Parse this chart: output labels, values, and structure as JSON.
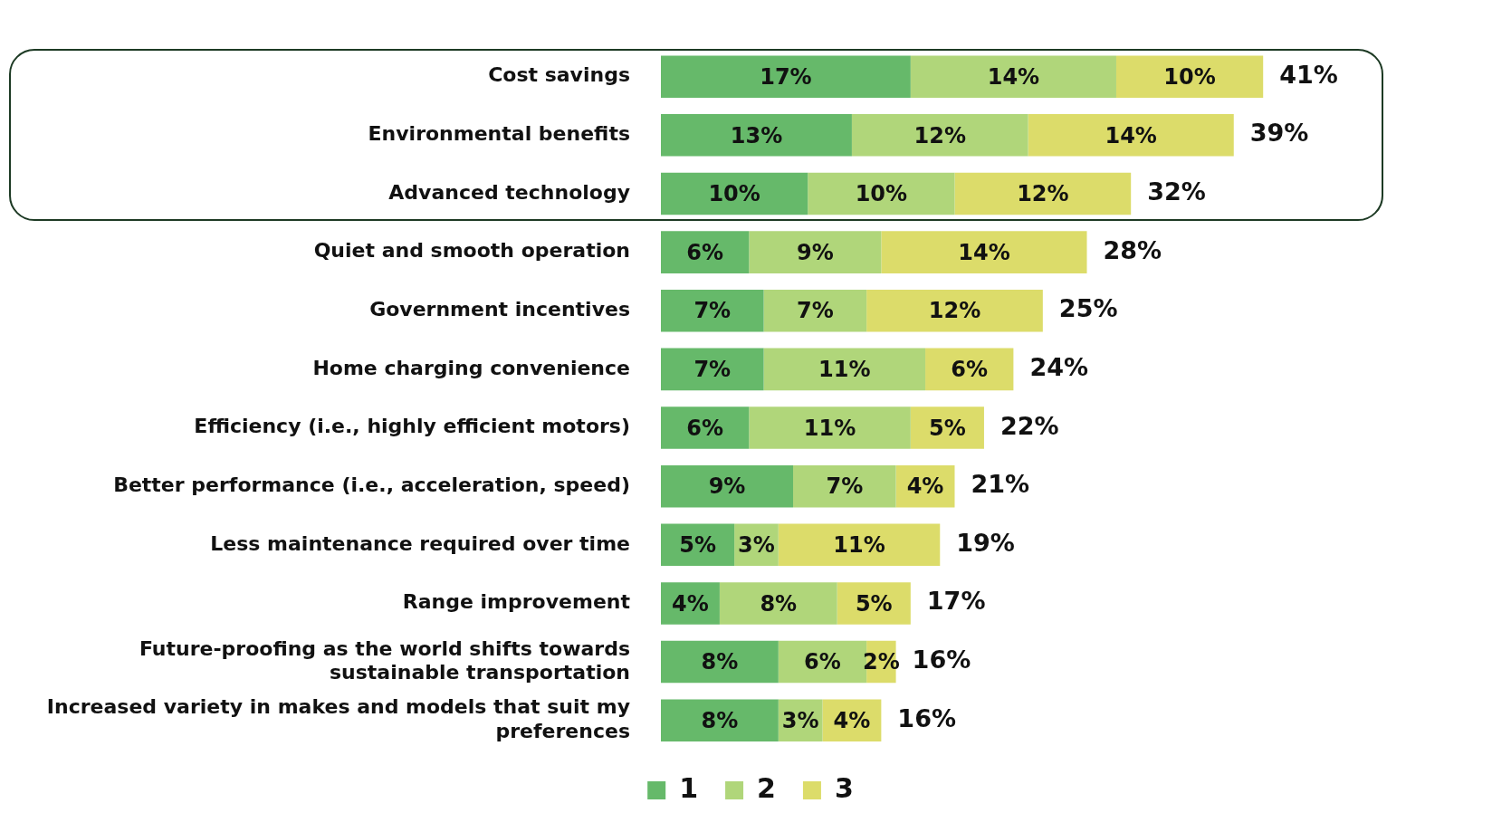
{
  "chart_data": {
    "type": "bar",
    "orientation": "horizontal",
    "stacked": true,
    "legend": "bottom",
    "categories": [
      "Cost savings",
      "Environmental benefits",
      "Advanced technology",
      "Quiet and smooth operation",
      "Government incentives",
      "Home charging convenience",
      "Efficiency (i.e., highly efficient motors)",
      "Better performance (i.e., acceleration, speed)",
      "Less maintenance required over time",
      "Range improvement",
      "Future-proofing as the world shifts towards sustainable transportation",
      "Increased variety in makes and models that suit my preferences"
    ],
    "series": [
      {
        "name": "1",
        "color": "#66b96a",
        "values": [
          17,
          13,
          10,
          6,
          7,
          7,
          6,
          9,
          5,
          4,
          8,
          8
        ],
        "value_labels": [
          "17%",
          "13%",
          "10%",
          "6%",
          "7%",
          "7%",
          "6%",
          "9%",
          "5%",
          "4%",
          "8%",
          "8%"
        ]
      },
      {
        "name": "2",
        "color": "#b0d67a",
        "values": [
          14,
          12,
          10,
          9,
          7,
          11,
          11,
          7,
          3,
          8,
          6,
          3
        ],
        "value_labels": [
          "14%",
          "12%",
          "10%",
          "9%",
          "7%",
          "11%",
          "11%",
          "7%",
          "3%",
          "8%",
          "6%",
          "3%"
        ]
      },
      {
        "name": "3",
        "color": "#dcdc6a",
        "values": [
          10,
          14,
          12,
          14,
          12,
          6,
          5,
          4,
          11,
          5,
          2,
          4
        ],
        "value_labels": [
          "10%",
          "14%",
          "12%",
          "14%",
          "12%",
          "6%",
          "5%",
          "4%",
          "11%",
          "5%",
          "2%",
          "4%"
        ]
      }
    ],
    "totals": [
      "41%",
      "39%",
      "32%",
      "28%",
      "25%",
      "24%",
      "22%",
      "21%",
      "19%",
      "17%",
      "16%",
      "16%"
    ]
  }
}
